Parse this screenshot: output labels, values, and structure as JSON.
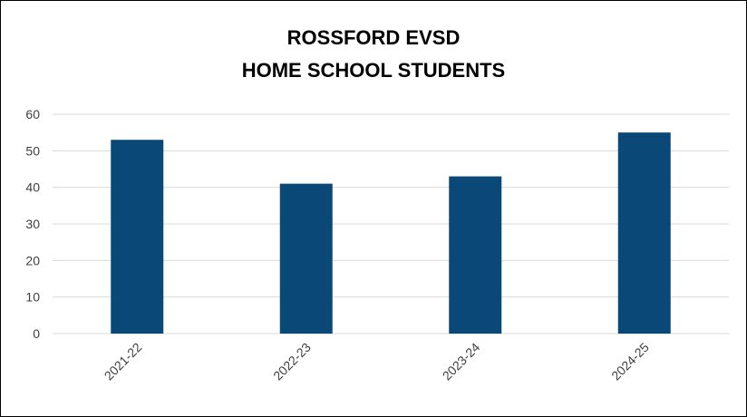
{
  "chart_data": {
    "type": "bar",
    "title_lines": [
      "ROSSFORD EVSD",
      "HOME SCHOOL STUDENTS"
    ],
    "categories": [
      "2021-22",
      "2022-23",
      "2023-24",
      "2024-25"
    ],
    "values": [
      53,
      41,
      43,
      55
    ],
    "ylim": [
      0,
      60
    ],
    "yticks": [
      0,
      10,
      20,
      30,
      40,
      50,
      60
    ],
    "xlabel": "",
    "ylabel": "",
    "grid": true,
    "legend": "none",
    "bar_color": "#0A4977",
    "grid_color": "#D9D9D9"
  }
}
